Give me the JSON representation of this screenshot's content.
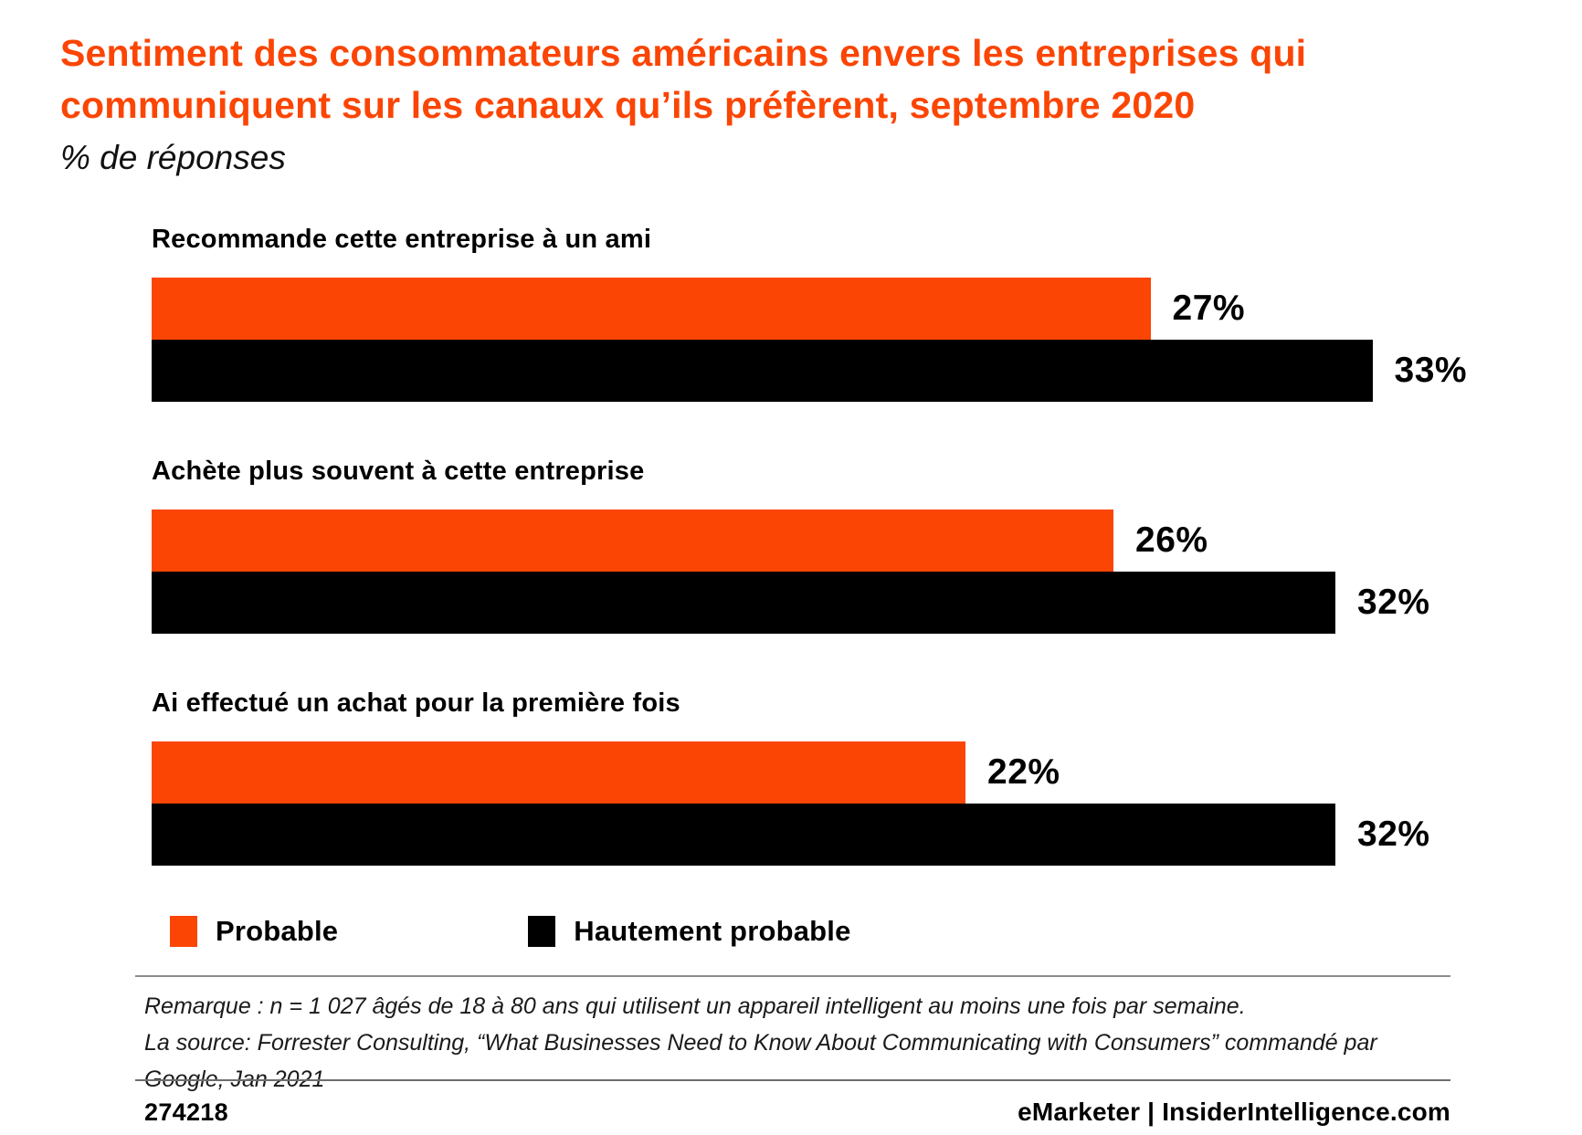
{
  "header": {
    "title": "Sentiment des consommateurs américains envers les entreprises qui communiquent sur les canaux qu’ils préfèrent, septembre 2020",
    "subtitle": "% de réponses"
  },
  "chart_data": {
    "type": "bar",
    "orientation": "horizontal",
    "title": "Sentiment des consommateurs américains envers les entreprises qui communiquent sur les canaux qu’ils préfèrent, septembre 2020",
    "subtitle": "% de réponses",
    "categories": [
      "Recommande cette entreprise à un ami",
      "Achète plus souvent à cette entreprise",
      "Ai effectué un achat pour la première fois"
    ],
    "series": [
      {
        "name": "Probable",
        "color": "#fb4504",
        "values": [
          27,
          26,
          22
        ]
      },
      {
        "name": "Hautement probable",
        "color": "#000000",
        "values": [
          33,
          32,
          32
        ]
      }
    ],
    "value_suffix": "%",
    "xlim": [
      0,
      35
    ],
    "grid": false,
    "legend_position": "bottom",
    "data_labels": [
      "27%",
      "33%",
      "26%",
      "32%",
      "22%",
      "32%"
    ]
  },
  "footnotes": {
    "note": "Remarque : n = 1 027 âgés de 18 à 80 ans qui utilisent un appareil intelligent au moins une fois par semaine.",
    "source": "La source:  Forrester Consulting, “What Businesses Need to Know About Communicating with Consumers” commandé par Google, Jan 2021"
  },
  "footer": {
    "chart_id": "274218",
    "brand": "eMarketer | InsiderIntelligence.com"
  },
  "colors": {
    "accent": "#fb4504",
    "secondary": "#000000",
    "rule": "#8c8c8c"
  }
}
